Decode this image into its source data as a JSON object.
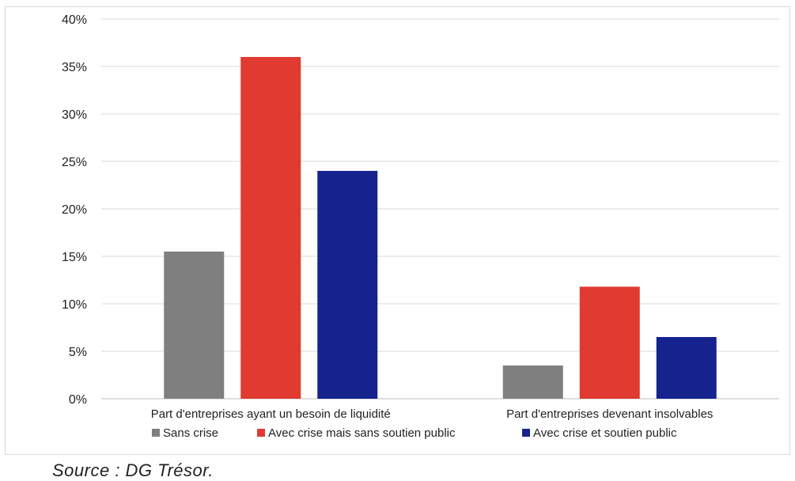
{
  "chart_data": {
    "type": "bar",
    "categories": [
      "Part d'entreprises ayant un besoin de liquidité",
      "Part d'entreprises  devenant insolvables"
    ],
    "series": [
      {
        "name": "Sans crise",
        "color": "#7f7f7f",
        "values": [
          15.5,
          3.5
        ]
      },
      {
        "name": "Avec crise mais sans soutien public",
        "color": "#e03a31",
        "values": [
          36,
          11.8
        ]
      },
      {
        "name": "Avec crise et soutien public",
        "color": "#16238f",
        "values": [
          24,
          6.5
        ]
      }
    ],
    "ylim": [
      0,
      40
    ],
    "yticks": [
      0,
      5,
      10,
      15,
      20,
      25,
      30,
      35,
      40
    ],
    "ytick_suffix": "%",
    "grid": true,
    "legend_position": "bottom"
  },
  "source": "Source : DG Trésor."
}
